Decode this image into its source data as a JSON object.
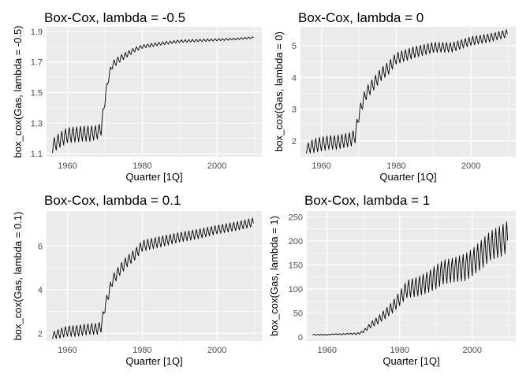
{
  "chart_data": [
    {
      "type": "line",
      "title": "Box-Cox, lambda = -0.5",
      "xlabel": "Quarter [1Q]",
      "ylabel": "box_cox(Gas, lambda = -0.5)",
      "x_ticks": [
        "1960",
        "1980",
        "2000"
      ],
      "y_ticks": [
        "1.1",
        "1.3",
        "1.5",
        "1.7",
        "1.9"
      ],
      "xlim": [
        1954.4,
        2012
      ],
      "ylim": [
        1.08,
        1.93
      ],
      "grid": true,
      "series": [
        {
          "anchor_x": [
            1956,
            1958,
            1960,
            1962,
            1964,
            1966,
            1968,
            1969,
            1970,
            1971,
            1972,
            1974,
            1976,
            1978,
            1980,
            1985,
            1990,
            1995,
            2000,
            2005,
            2010
          ],
          "center": [
            1.15,
            1.19,
            1.22,
            1.225,
            1.23,
            1.23,
            1.24,
            1.26,
            1.45,
            1.6,
            1.68,
            1.72,
            1.75,
            1.78,
            1.8,
            1.82,
            1.835,
            1.84,
            1.845,
            1.85,
            1.86
          ],
          "amplitude": [
            0.045,
            0.05,
            0.05,
            0.05,
            0.05,
            0.05,
            0.045,
            0.04,
            0.035,
            0.03,
            0.025,
            0.022,
            0.018,
            0.015,
            0.012,
            0.01,
            0.009,
            0.008,
            0.007,
            0.006,
            0.006
          ]
        }
      ]
    },
    {
      "type": "line",
      "title": "Box-Cox, lambda = 0",
      "xlabel": "Quarter [1Q]",
      "ylabel": "box_cox(Gas, lambda = 0)",
      "x_ticks": [
        "1960",
        "1980",
        "2000"
      ],
      "y_ticks": [
        "2",
        "3",
        "4",
        "5"
      ],
      "xlim": [
        1954.4,
        2012
      ],
      "ylim": [
        1.5,
        5.6
      ],
      "grid": true,
      "series": [
        {
          "anchor_x": [
            1956,
            1958,
            1960,
            1962,
            1964,
            1966,
            1968,
            1969,
            1970,
            1971,
            1972,
            1974,
            1976,
            1978,
            1980,
            1985,
            1990,
            1995,
            2000,
            2005,
            2010
          ],
          "center": [
            1.75,
            1.85,
            1.9,
            1.95,
            1.95,
            2.0,
            2.05,
            2.15,
            2.8,
            3.2,
            3.5,
            3.8,
            4.1,
            4.3,
            4.6,
            4.8,
            4.95,
            4.95,
            5.15,
            5.25,
            5.4
          ],
          "amplitude": [
            0.15,
            0.22,
            0.22,
            0.22,
            0.22,
            0.22,
            0.22,
            0.22,
            0.2,
            0.2,
            0.2,
            0.2,
            0.2,
            0.2,
            0.18,
            0.18,
            0.16,
            0.15,
            0.14,
            0.13,
            0.12
          ]
        }
      ]
    },
    {
      "type": "line",
      "title": "Box-Cox, lambda = 0.1",
      "xlabel": "Quarter [1Q]",
      "ylabel": "box_cox(Gas, lambda = 0.1)",
      "x_ticks": [
        "1960",
        "1980",
        "2000"
      ],
      "y_ticks": [
        "2",
        "4",
        "6"
      ],
      "xlim": [
        1954.4,
        2012
      ],
      "ylim": [
        1.65,
        7.6
      ],
      "grid": true,
      "series": [
        {
          "anchor_x": [
            1956,
            1958,
            1960,
            1962,
            1964,
            1966,
            1968,
            1969,
            1970,
            1971,
            1972,
            1974,
            1976,
            1978,
            1980,
            1985,
            1990,
            1995,
            2000,
            2005,
            2010
          ],
          "center": [
            1.9,
            2.0,
            2.1,
            2.1,
            2.15,
            2.2,
            2.2,
            2.3,
            3.2,
            3.8,
            4.4,
            4.9,
            5.3,
            5.6,
            6.0,
            6.2,
            6.4,
            6.55,
            6.75,
            6.9,
            7.1
          ],
          "amplitude": [
            0.15,
            0.22,
            0.24,
            0.25,
            0.25,
            0.25,
            0.25,
            0.25,
            0.25,
            0.25,
            0.25,
            0.25,
            0.25,
            0.25,
            0.25,
            0.25,
            0.22,
            0.22,
            0.2,
            0.2,
            0.2
          ]
        }
      ]
    },
    {
      "type": "line",
      "title": "Box-Cox, lambda = 1",
      "xlabel": "Quarter [1Q]",
      "ylabel": "box_cox(Gas, lambda = 1)",
      "x_ticks": [
        "1960",
        "1980",
        "2000"
      ],
      "y_ticks": [
        "0",
        "50",
        "100",
        "150",
        "200",
        "250"
      ],
      "xlim": [
        1954.4,
        2012
      ],
      "ylim": [
        -8,
        262
      ],
      "grid": true,
      "series": [
        {
          "anchor_x": [
            1956,
            1958,
            1960,
            1962,
            1964,
            1966,
            1968,
            1969,
            1970,
            1971,
            1972,
            1974,
            1976,
            1978,
            1980,
            1982,
            1985,
            1988,
            1990,
            1992,
            1995,
            1998,
            2000,
            2003,
            2005,
            2008,
            2010
          ],
          "center": [
            5,
            5,
            5,
            6,
            6,
            7,
            7,
            8,
            12,
            18,
            25,
            35,
            48,
            62,
            80,
            100,
            105,
            115,
            125,
            135,
            140,
            145,
            155,
            175,
            190,
            200,
            210
          ],
          "amplitude": [
            0.5,
            1,
            1,
            1,
            1,
            1,
            2,
            2,
            3,
            4,
            6,
            8,
            10,
            12,
            15,
            18,
            20,
            22,
            25,
            25,
            25,
            28,
            28,
            30,
            30,
            32,
            32
          ]
        }
      ]
    }
  ]
}
